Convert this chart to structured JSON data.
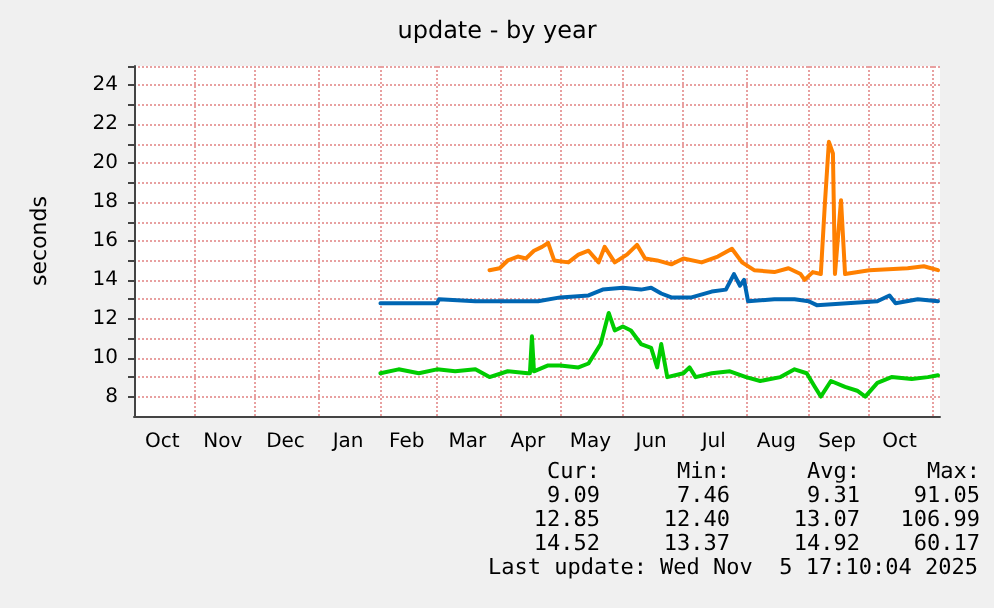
{
  "chart_data": {
    "type": "line",
    "title": "update - by year",
    "ylabel": "seconds",
    "xlim": [
      "2024-10-02",
      "2025-11-05"
    ],
    "xticks": [
      {
        "value": "2024-10-16",
        "label": "Oct"
      },
      {
        "value": "2024-11-15",
        "label": "Nov"
      },
      {
        "value": "2024-12-16",
        "label": "Dec"
      },
      {
        "value": "2025-01-16",
        "label": "Jan"
      },
      {
        "value": "2025-02-14",
        "label": "Feb"
      },
      {
        "value": "2025-03-16",
        "label": "Mar"
      },
      {
        "value": "2025-04-15",
        "label": "Apr"
      },
      {
        "value": "2025-05-16",
        "label": "May"
      },
      {
        "value": "2025-06-15",
        "label": "Jun"
      },
      {
        "value": "2025-07-16",
        "label": "Jul"
      },
      {
        "value": "2025-08-16",
        "label": "Aug"
      },
      {
        "value": "2025-09-15",
        "label": "Sep"
      },
      {
        "value": "2025-10-16",
        "label": "Oct"
      },
      {
        "value": "2024-11-01",
        "label": null
      },
      {
        "value": "2024-12-01",
        "label": null
      },
      {
        "value": "2025-01-01",
        "label": null
      },
      {
        "value": "2025-02-01",
        "label": null
      },
      {
        "value": "2025-03-01",
        "label": null
      },
      {
        "value": "2025-04-01",
        "label": null
      },
      {
        "value": "2025-05-01",
        "label": null
      },
      {
        "value": "2025-06-01",
        "label": null
      },
      {
        "value": "2025-07-01",
        "label": null
      },
      {
        "value": "2025-08-01",
        "label": null
      },
      {
        "value": "2025-09-01",
        "label": null
      },
      {
        "value": "2025-10-01",
        "label": null
      },
      {
        "value": "2025-11-01",
        "label": null
      }
    ],
    "ylim": [
      7,
      25
    ],
    "yticks": [
      8,
      10,
      12,
      14,
      16,
      18,
      20,
      22,
      24,
      {
        "value": 9,
        "label": null
      },
      {
        "value": 11,
        "label": null
      },
      {
        "value": 13,
        "label": null
      },
      {
        "value": 15,
        "label": null
      },
      {
        "value": 17,
        "label": null
      },
      {
        "value": 19,
        "label": null
      },
      {
        "value": 21,
        "label": null
      },
      {
        "value": 23,
        "label": null
      },
      {
        "value": 25,
        "label": null
      }
    ],
    "grid": true,
    "marker": "none",
    "line_style": "solid",
    "series": [
      {
        "color": "#00cc00",
        "x": [
          "2025-02-01",
          "2025-02-10",
          "2025-02-20",
          "2025-03-01",
          "2025-03-10",
          "2025-03-20",
          "2025-03-27",
          "2025-04-05",
          "2025-04-15",
          "2025-04-16",
          "2025-04-17",
          "2025-04-18",
          "2025-04-25",
          "2025-05-01",
          "2025-05-10",
          "2025-05-15",
          "2025-05-21",
          "2025-05-22",
          "2025-05-25",
          "2025-05-28",
          "2025-06-01",
          "2025-06-05",
          "2025-06-10",
          "2025-06-15",
          "2025-06-18",
          "2025-06-20",
          "2025-06-23",
          "2025-07-01",
          "2025-07-04",
          "2025-07-07",
          "2025-07-15",
          "2025-07-24",
          "2025-08-01",
          "2025-08-08",
          "2025-08-18",
          "2025-08-25",
          "2025-08-31",
          "2025-09-04",
          "2025-09-07",
          "2025-09-12",
          "2025-09-19",
          "2025-09-25",
          "2025-09-29",
          "2025-10-05",
          "2025-10-12",
          "2025-10-22",
          "2025-10-30",
          "2025-11-04"
        ],
        "values": [
          9.2,
          9.4,
          9.2,
          9.4,
          9.3,
          9.4,
          9.0,
          9.3,
          9.2,
          9.2,
          11.1,
          9.3,
          9.6,
          9.6,
          9.5,
          9.7,
          10.7,
          11.1,
          12.3,
          11.4,
          11.6,
          11.4,
          10.7,
          10.5,
          9.5,
          10.7,
          9.0,
          9.2,
          9.5,
          9.0,
          9.2,
          9.3,
          9.0,
          8.8,
          9.0,
          9.4,
          9.2,
          8.5,
          8.0,
          8.8,
          8.5,
          8.3,
          8.0,
          8.7,
          9.0,
          8.9,
          9.0,
          9.1
        ]
      },
      {
        "color": "#0066b3",
        "x": [
          "2025-02-01",
          "2025-03-01",
          "2025-03-02",
          "2025-03-20",
          "2025-04-05",
          "2025-04-20",
          "2025-05-01",
          "2025-05-15",
          "2025-05-22",
          "2025-06-01",
          "2025-06-10",
          "2025-06-15",
          "2025-06-20",
          "2025-06-25",
          "2025-07-05",
          "2025-07-15",
          "2025-07-22",
          "2025-07-26",
          "2025-07-29",
          "2025-07-31",
          "2025-08-02",
          "2025-08-15",
          "2025-08-25",
          "2025-09-01",
          "2025-09-05",
          "2025-09-20",
          "2025-10-05",
          "2025-10-11",
          "2025-10-14",
          "2025-10-25",
          "2025-11-04"
        ],
        "values": [
          12.8,
          12.8,
          13.0,
          12.9,
          12.9,
          12.9,
          13.1,
          13.2,
          13.5,
          13.6,
          13.5,
          13.6,
          13.3,
          13.1,
          13.1,
          13.4,
          13.5,
          14.3,
          13.7,
          14.0,
          12.9,
          13.0,
          13.0,
          12.9,
          12.7,
          12.8,
          12.9,
          13.2,
          12.8,
          13.0,
          12.9
        ]
      },
      {
        "color": "#ff8000",
        "x": [
          "2025-03-27",
          "2025-04-01",
          "2025-04-05",
          "2025-04-10",
          "2025-04-14",
          "2025-04-18",
          "2025-04-22",
          "2025-04-25",
          "2025-04-28",
          "2025-05-05",
          "2025-05-10",
          "2025-05-15",
          "2025-05-20",
          "2025-05-23",
          "2025-05-28",
          "2025-06-03",
          "2025-06-08",
          "2025-06-12",
          "2025-06-18",
          "2025-06-25",
          "2025-07-01",
          "2025-07-10",
          "2025-07-18",
          "2025-07-25",
          "2025-07-30",
          "2025-08-05",
          "2025-08-15",
          "2025-08-22",
          "2025-08-28",
          "2025-08-30",
          "2025-09-03",
          "2025-09-07",
          "2025-09-09",
          "2025-09-11",
          "2025-09-13",
          "2025-09-14",
          "2025-09-17",
          "2025-09-19",
          "2025-10-01",
          "2025-10-20",
          "2025-10-28",
          "2025-11-04"
        ],
        "values": [
          14.5,
          14.6,
          15.0,
          15.2,
          15.1,
          15.5,
          15.7,
          15.9,
          15.0,
          14.9,
          15.3,
          15.5,
          14.9,
          15.7,
          14.9,
          15.3,
          15.8,
          15.1,
          15.0,
          14.8,
          15.1,
          14.9,
          15.2,
          15.6,
          14.9,
          14.5,
          14.4,
          14.6,
          14.3,
          14.0,
          14.4,
          14.3,
          17.9,
          21.1,
          20.5,
          14.3,
          18.1,
          14.3,
          14.5,
          14.6,
          14.7,
          14.5
        ]
      }
    ],
    "annotations": [
      "Cur:",
      "Min:",
      "Avg:",
      "Max:",
      "9.09",
      "7.46",
      "9.31",
      "91.05",
      "12.85",
      "12.40",
      "13.07",
      "106.99",
      "14.52",
      "13.37",
      "14.92",
      "60.17",
      "Last update: Wed Nov  5 17:10:04 2025"
    ]
  }
}
